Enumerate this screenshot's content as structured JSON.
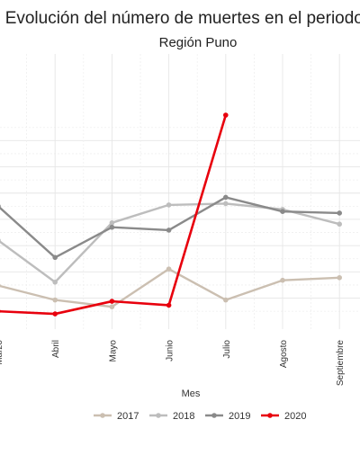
{
  "chart_data": {
    "type": "line",
    "title": "Evolución del número de muertes en el periodo en",
    "subtitle": "Región Puno",
    "xlabel": "Mes",
    "ylabel": "",
    "categories": [
      "Marzo",
      "Abril",
      "Mayo",
      "Junio",
      "Julio",
      "Agosto",
      "Septiembre"
    ],
    "series": [
      {
        "name": "2017",
        "color": "#cbbfb1",
        "values": [
          298,
          243,
          217,
          361,
          243,
          318,
          328
        ]
      },
      {
        "name": "2018",
        "color": "#bdbdbd",
        "values": [
          470,
          311,
          537,
          605,
          610,
          588,
          532
        ]
      },
      {
        "name": "2019",
        "color": "#8a8a8a",
        "values": [
          600,
          405,
          520,
          509,
          634,
          580,
          574
        ]
      },
      {
        "name": "2020",
        "color": "#e8000d",
        "values": [
          200,
          190,
          238,
          223,
          947,
          null,
          null
        ]
      }
    ],
    "grid": true,
    "legend_position": "bottom"
  }
}
